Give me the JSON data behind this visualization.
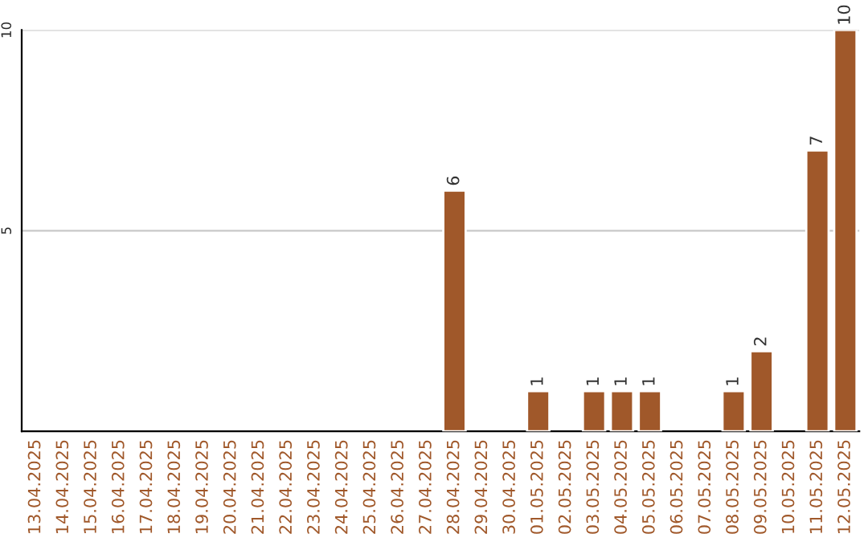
{
  "chart_data": {
    "type": "bar",
    "categories": [
      "13.04.2025",
      "14.04.2025",
      "15.04.2025",
      "16.04.2025",
      "17.04.2025",
      "18.04.2025",
      "19.04.2025",
      "20.04.2025",
      "21.04.2025",
      "22.04.2025",
      "23.04.2025",
      "24.04.2025",
      "25.04.2025",
      "26.04.2025",
      "27.04.2025",
      "28.04.2025",
      "29.04.2025",
      "30.04.2025",
      "01.05.2025",
      "02.05.2025",
      "03.05.2025",
      "04.05.2025",
      "05.05.2025",
      "06.05.2025",
      "07.05.2025",
      "08.05.2025",
      "09.05.2025",
      "10.05.2025",
      "11.05.2025",
      "12.05.2025"
    ],
    "values": [
      null,
      null,
      null,
      null,
      null,
      null,
      null,
      null,
      null,
      null,
      null,
      null,
      null,
      null,
      null,
      6,
      null,
      null,
      1,
      null,
      1,
      1,
      1,
      null,
      null,
      1,
      2,
      null,
      7,
      10
    ],
    "color": "#a0582a",
    "ylim": [
      0,
      10
    ],
    "yticks": [
      5,
      10
    ],
    "grid": "y",
    "data_labels": true
  }
}
